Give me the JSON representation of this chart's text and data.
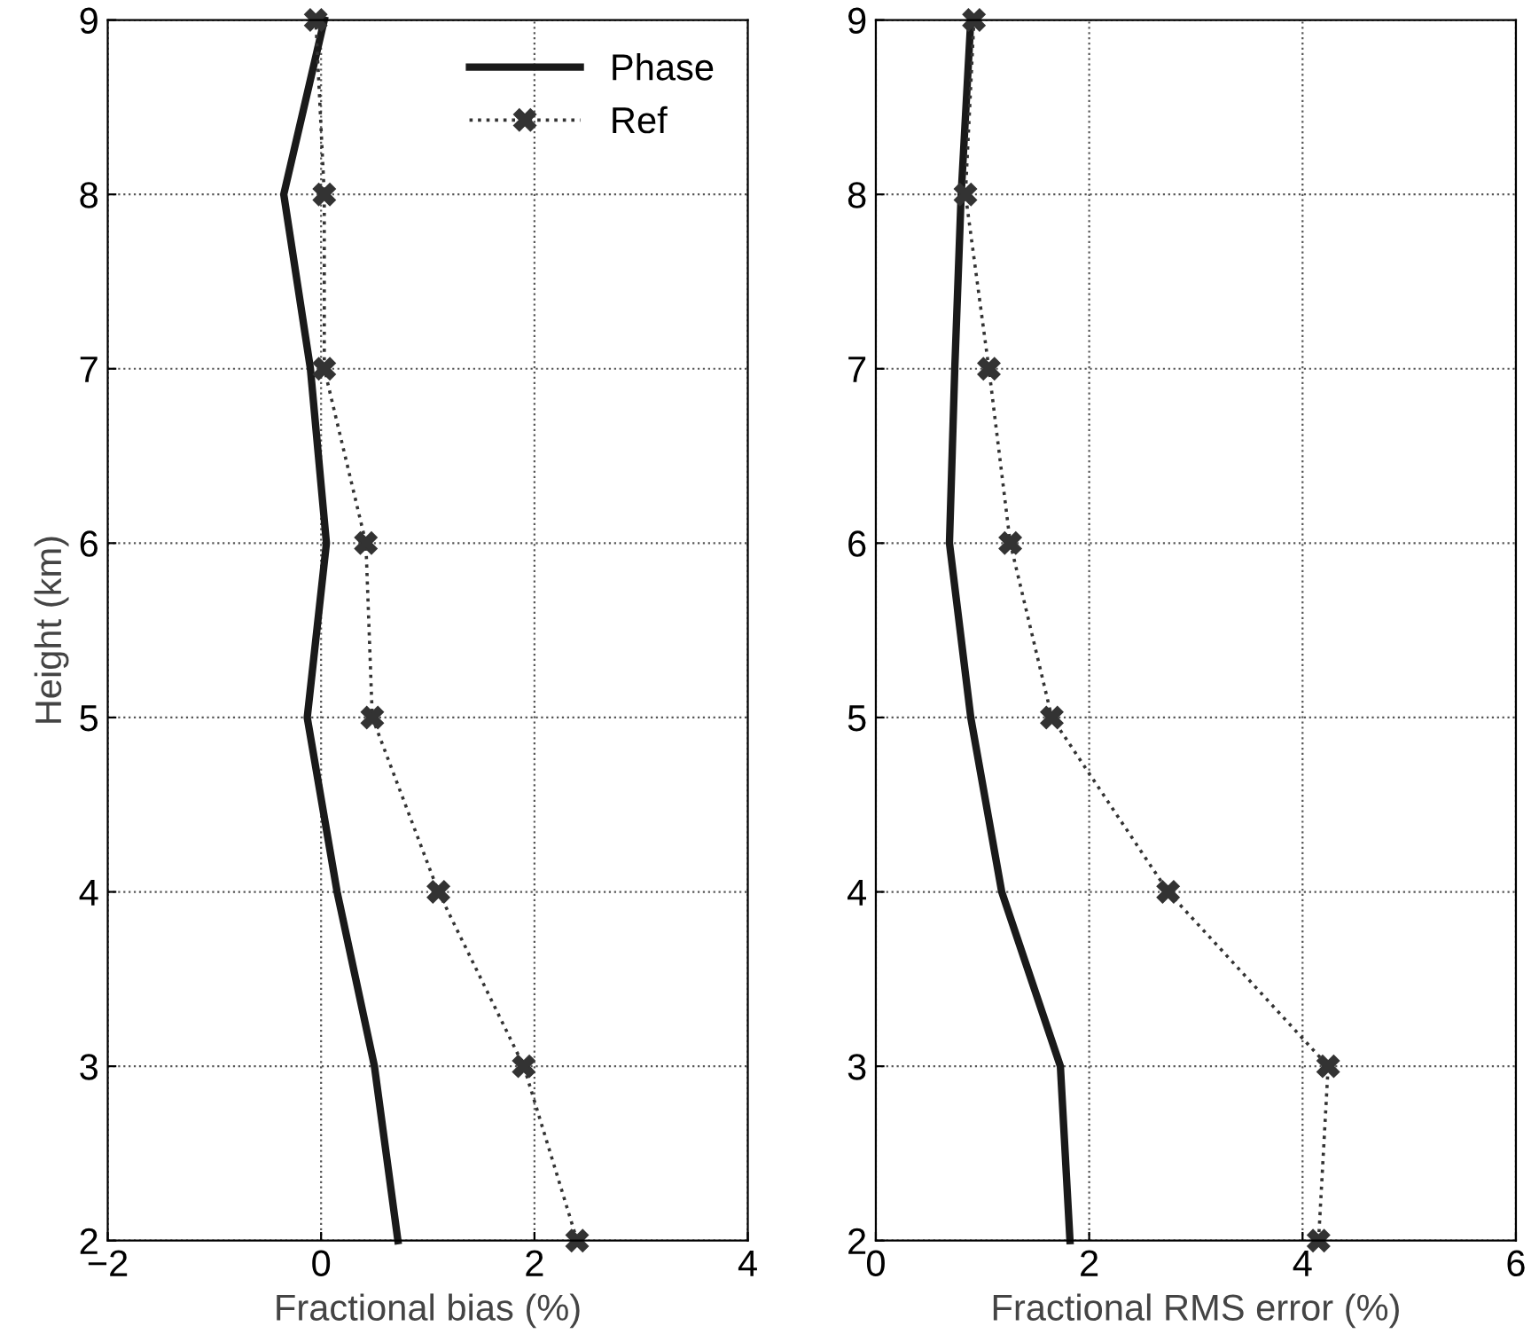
{
  "chart_data": [
    {
      "type": "line",
      "xlabel": "Fractional bias (%)",
      "ylabel": "Height (km)",
      "xlim": [
        -2,
        4
      ],
      "xticks": [
        {
          "value": -2,
          "label": "−2"
        },
        0,
        2,
        4
      ],
      "ylim": [
        2,
        9
      ],
      "yticks": [
        2,
        3,
        4,
        5,
        6,
        7,
        8,
        9
      ],
      "grid": true,
      "legend": "top right",
      "series": [
        {
          "name": "Phase",
          "color": "#1a1a1a",
          "line_style": "solid",
          "marker": "none",
          "x": [
            0.72,
            0.5,
            0.15,
            -0.13,
            0.05,
            -0.1,
            -0.35,
            0.03
          ],
          "values": [
            2,
            3,
            4,
            5,
            6,
            7,
            8,
            9
          ]
        },
        {
          "name": "Ref",
          "color": "#333333",
          "line_style": "dotted",
          "marker": "cross",
          "x": [
            2.4,
            1.9,
            1.1,
            0.48,
            0.42,
            0.03,
            0.03,
            -0.05
          ],
          "values": [
            2,
            3,
            4,
            5,
            6,
            7,
            8,
            9
          ]
        }
      ]
    },
    {
      "type": "line",
      "xlabel": "Fractional RMS error (%)",
      "xlim": [
        0,
        6
      ],
      "xticks": [
        0,
        2,
        4,
        6
      ],
      "ylim": [
        2,
        9
      ],
      "yticks": [
        2,
        3,
        4,
        5,
        6,
        7,
        8,
        9
      ],
      "grid": true,
      "series": [
        {
          "color": "#1a1a1a",
          "line_style": "solid",
          "marker": "none",
          "x": [
            1.82,
            1.73,
            1.18,
            0.89,
            0.69,
            0.74,
            0.8,
            0.89
          ],
          "values": [
            2,
            3,
            4,
            5,
            6,
            7,
            8,
            9
          ]
        },
        {
          "color": "#333333",
          "line_style": "dotted",
          "marker": "cross",
          "x": [
            4.15,
            4.24,
            2.74,
            1.65,
            1.26,
            1.06,
            0.84,
            0.92
          ],
          "values": [
            2,
            3,
            4,
            5,
            6,
            7,
            8,
            9
          ]
        }
      ]
    }
  ]
}
